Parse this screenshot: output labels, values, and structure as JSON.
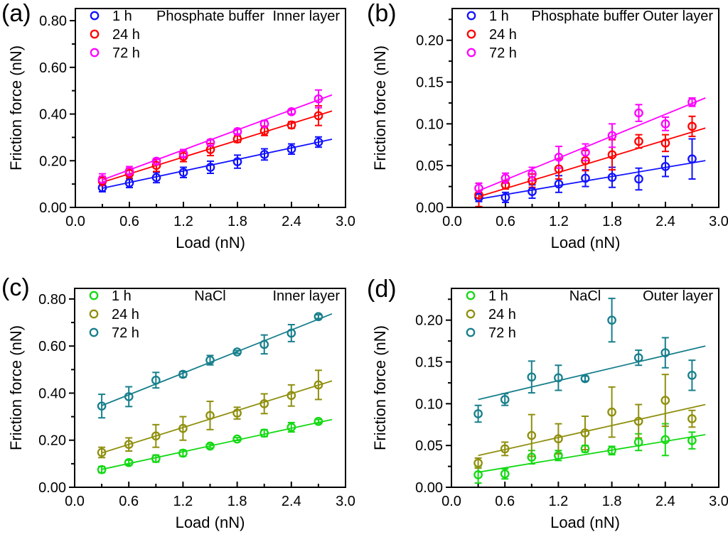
{
  "figure": {
    "panel_letters": {
      "a": "(a)",
      "b": "(b)",
      "c": "(c)",
      "d": "(d)"
    }
  },
  "chart_data": [
    {
      "type": "scatter",
      "panel_label": "(a)",
      "annotation_center": "Phosphate buffer",
      "annotation_right": "Inner layer",
      "xlabel": "Load (nN)",
      "ylabel": "Friction force (nN)",
      "xlim": [
        0,
        3.0
      ],
      "ylim": [
        0,
        0.852
      ],
      "xticks": [
        0.0,
        0.6,
        1.2,
        1.8,
        2.4,
        3.0
      ],
      "xtick_labels": [
        "0.0",
        "0.6",
        "1.2",
        "1.8",
        "2.4",
        "3.0"
      ],
      "xminor": [
        0.3,
        0.9,
        1.5,
        2.1,
        2.7
      ],
      "yticks": [
        0.0,
        0.2,
        0.4,
        0.6,
        0.8
      ],
      "ytick_labels": [
        "0.00",
        "0.20",
        "0.40",
        "0.60",
        "0.80"
      ],
      "yminor": [
        0.1,
        0.3,
        0.5,
        0.7
      ],
      "x": [
        0.3,
        0.6,
        0.9,
        1.2,
        1.5,
        1.8,
        2.1,
        2.4,
        2.7
      ],
      "legend_position": "top-left",
      "grid": false,
      "series": [
        {
          "name": "1 h",
          "color": "#1212ff",
          "y": [
            0.085,
            0.105,
            0.128,
            0.15,
            0.172,
            0.196,
            0.227,
            0.25,
            0.28
          ],
          "err": [
            0.018,
            0.02,
            0.022,
            0.022,
            0.026,
            0.028,
            0.024,
            0.022,
            0.022
          ],
          "fit": [
            [
              0.3,
              0.082
            ],
            [
              2.85,
              0.292
            ]
          ]
        },
        {
          "name": "24 h",
          "color": "#ff0000",
          "y": [
            0.113,
            0.145,
            0.18,
            0.218,
            0.248,
            0.293,
            0.328,
            0.353,
            0.393
          ],
          "err": [
            0.02,
            0.022,
            0.026,
            0.022,
            0.026,
            0.014,
            0.02,
            0.014,
            0.042
          ],
          "fit": [
            [
              0.3,
              0.108
            ],
            [
              2.85,
              0.413
            ]
          ]
        },
        {
          "name": "72 h",
          "color": "#ff00ff",
          "y": [
            0.12,
            0.155,
            0.198,
            0.23,
            0.278,
            0.325,
            0.358,
            0.41,
            0.465
          ],
          "err": [
            0.024,
            0.02,
            0.012,
            0.018,
            0.012,
            0.01,
            0.014,
            0.01,
            0.038
          ],
          "fit": [
            [
              0.3,
              0.118
            ],
            [
              2.85,
              0.482
            ]
          ]
        }
      ]
    },
    {
      "type": "scatter",
      "panel_label": "(b)",
      "annotation_center": "Phosphate buffer",
      "annotation_right": "Outer layer",
      "xlabel": "Load (nN)",
      "ylabel": "Friction force (nN)",
      "xlim": [
        0,
        3.0
      ],
      "ylim": [
        0,
        0.238
      ],
      "xticks": [
        0.0,
        0.6,
        1.2,
        1.8,
        2.4,
        3.0
      ],
      "xtick_labels": [
        "0.0",
        "0.6",
        "1.2",
        "1.8",
        "2.4",
        "3.0"
      ],
      "xminor": [
        0.3,
        0.9,
        1.5,
        2.1,
        2.7
      ],
      "yticks": [
        0.0,
        0.05,
        0.1,
        0.15,
        0.2
      ],
      "ytick_labels": [
        "0.00",
        "0.05",
        "0.10",
        "0.15",
        "0.20"
      ],
      "yminor": [
        0.025,
        0.075,
        0.125,
        0.175,
        0.225
      ],
      "x": [
        0.3,
        0.6,
        0.9,
        1.2,
        1.5,
        1.8,
        2.1,
        2.4,
        2.7
      ],
      "legend_position": "top-left",
      "grid": false,
      "series": [
        {
          "name": "1 h",
          "color": "#1212ff",
          "y": [
            0.012,
            0.012,
            0.019,
            0.028,
            0.035,
            0.036,
            0.034,
            0.049,
            0.058
          ],
          "err": [
            0.005,
            0.006,
            0.008,
            0.01,
            0.01,
            0.012,
            0.013,
            0.012,
            0.024
          ],
          "fit": [
            [
              0.3,
              0.01
            ],
            [
              2.85,
              0.056
            ]
          ]
        },
        {
          "name": "24 h",
          "color": "#ff0000",
          "y": [
            0.015,
            0.027,
            0.032,
            0.046,
            0.056,
            0.063,
            0.079,
            0.077,
            0.097
          ],
          "err": [
            0.014,
            0.005,
            0.008,
            0.012,
            0.012,
            0.018,
            0.008,
            0.01,
            0.012
          ],
          "fit": [
            [
              0.3,
              0.013
            ],
            [
              2.85,
              0.095
            ]
          ]
        },
        {
          "name": "72 h",
          "color": "#ff00ff",
          "y": [
            0.023,
            0.035,
            0.04,
            0.06,
            0.066,
            0.086,
            0.113,
            0.1,
            0.126
          ],
          "err": [
            0.006,
            0.006,
            0.008,
            0.013,
            0.01,
            0.014,
            0.01,
            0.008,
            0.005
          ],
          "fit": [
            [
              0.3,
              0.02
            ],
            [
              2.85,
              0.131
            ]
          ]
        }
      ]
    },
    {
      "type": "scatter",
      "panel_label": "(c)",
      "annotation_center": "NaCl",
      "annotation_right": "Inner layer",
      "xlabel": "Load (nN)",
      "ylabel": "Friction force (nN)",
      "xlim": [
        0,
        3.0
      ],
      "ylim": [
        0,
        0.845
      ],
      "xticks": [
        0.0,
        0.6,
        1.2,
        1.8,
        2.4,
        3.0
      ],
      "xtick_labels": [
        "0.0",
        "0.6",
        "1.2",
        "1.8",
        "2.4",
        "3.0"
      ],
      "xminor": [
        0.3,
        0.9,
        1.5,
        2.1,
        2.7
      ],
      "yticks": [
        0.0,
        0.2,
        0.4,
        0.6,
        0.8
      ],
      "ytick_labels": [
        "0.00",
        "0.20",
        "0.40",
        "0.60",
        "0.80"
      ],
      "yminor": [
        0.1,
        0.3,
        0.5,
        0.7
      ],
      "x": [
        0.3,
        0.6,
        0.9,
        1.2,
        1.5,
        1.8,
        2.1,
        2.4,
        2.7
      ],
      "legend_position": "top-left",
      "grid": false,
      "series": [
        {
          "name": "1 h",
          "color": "#12d912",
          "y": [
            0.075,
            0.105,
            0.122,
            0.145,
            0.175,
            0.205,
            0.23,
            0.255,
            0.28
          ],
          "err": [
            0.013,
            0.01,
            0.015,
            0.013,
            0.008,
            0.006,
            0.015,
            0.02,
            0.008
          ],
          "fit": [
            [
              0.3,
              0.076
            ],
            [
              2.85,
              0.288
            ]
          ]
        },
        {
          "name": "24 h",
          "color": "#8f8f0e",
          "y": [
            0.148,
            0.182,
            0.218,
            0.25,
            0.305,
            0.315,
            0.355,
            0.39,
            0.435
          ],
          "err": [
            0.022,
            0.028,
            0.048,
            0.05,
            0.06,
            0.025,
            0.042,
            0.045,
            0.062
          ],
          "fit": [
            [
              0.3,
              0.146
            ],
            [
              2.85,
              0.452
            ]
          ]
        },
        {
          "name": "72 h",
          "color": "#177f8c",
          "y": [
            0.345,
            0.385,
            0.455,
            0.48,
            0.54,
            0.575,
            0.607,
            0.655,
            0.725
          ],
          "err": [
            0.05,
            0.042,
            0.033,
            0.012,
            0.02,
            0.006,
            0.04,
            0.036,
            0.008
          ],
          "fit": [
            [
              0.3,
              0.347
            ],
            [
              2.85,
              0.737
            ]
          ]
        }
      ]
    },
    {
      "type": "scatter",
      "panel_label": "(d)",
      "annotation_center": "NaCl",
      "annotation_right": "Outer layer",
      "xlabel": "Load (nN)",
      "ylabel": "Friction force (nN)",
      "xlim": [
        0,
        3.0
      ],
      "ylim": [
        0,
        0.238
      ],
      "xticks": [
        0.0,
        0.6,
        1.2,
        1.8,
        2.4,
        3.0
      ],
      "xtick_labels": [
        "0.0",
        "0.6",
        "1.2",
        "1.8",
        "2.4",
        "3.0"
      ],
      "xminor": [
        0.3,
        0.9,
        1.5,
        2.1,
        2.7
      ],
      "yticks": [
        0.0,
        0.05,
        0.1,
        0.15,
        0.2
      ],
      "ytick_labels": [
        "0.00",
        "0.05",
        "0.10",
        "0.15",
        "0.20"
      ],
      "yminor": [
        0.025,
        0.075,
        0.125,
        0.175,
        0.225
      ],
      "x": [
        0.3,
        0.6,
        0.9,
        1.2,
        1.5,
        1.8,
        2.1,
        2.4,
        2.7
      ],
      "legend_position": "top-left",
      "grid": false,
      "series": [
        {
          "name": "1 h",
          "color": "#12d912",
          "y": [
            0.015,
            0.016,
            0.036,
            0.038,
            0.046,
            0.044,
            0.054,
            0.057,
            0.056
          ],
          "err": [
            0.01,
            0.006,
            0.008,
            0.006,
            0.004,
            0.005,
            0.01,
            0.019,
            0.01
          ],
          "fit": [
            [
              0.3,
              0.018
            ],
            [
              2.85,
              0.063
            ]
          ]
        },
        {
          "name": "24 h",
          "color": "#8f8f0e",
          "y": [
            0.029,
            0.046,
            0.062,
            0.058,
            0.065,
            0.09,
            0.079,
            0.104,
            0.082
          ],
          "err": [
            0.006,
            0.008,
            0.025,
            0.018,
            0.02,
            0.03,
            0.02,
            0.031,
            0.01
          ],
          "fit": [
            [
              0.3,
              0.038
            ],
            [
              2.85,
              0.099
            ]
          ]
        },
        {
          "name": "72 h",
          "color": "#177f8c",
          "y": [
            0.088,
            0.105,
            0.132,
            0.131,
            0.13,
            0.2,
            0.155,
            0.161,
            0.134
          ],
          "err": [
            0.01,
            0.007,
            0.019,
            0.015,
            0.003,
            0.026,
            0.009,
            0.018,
            0.018
          ],
          "fit": [
            [
              0.3,
              0.105
            ],
            [
              2.85,
              0.169
            ]
          ]
        }
      ]
    }
  ]
}
